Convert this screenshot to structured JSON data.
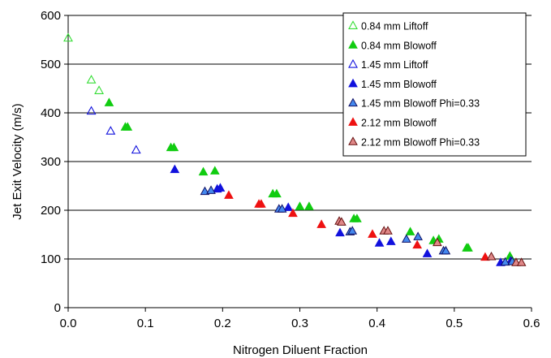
{
  "chart_data": {
    "type": "scatter",
    "title": "",
    "xlabel": "Nitrogen Diluent Fraction",
    "ylabel": "Jet Exit Velocity (m/s)",
    "xlim": [
      0,
      0.6
    ],
    "ylim": [
      0,
      600
    ],
    "xticks": [
      "0.0",
      "0.1",
      "0.2",
      "0.3",
      "0.4",
      "0.5",
      "0.6"
    ],
    "yticks": [
      "0",
      "100",
      "200",
      "300",
      "400",
      "500",
      "600"
    ],
    "grid": "horizontal",
    "legend_position": "top-right",
    "series": [
      {
        "name": "0.84 mm Liftoff",
        "marker": "open-triangle",
        "color": "#33dd33",
        "fill": "none",
        "points": [
          [
            0.0,
            553
          ],
          [
            0.03,
            467
          ],
          [
            0.04,
            445
          ]
        ]
      },
      {
        "name": "0.84 mm Blowoff",
        "marker": "filled-triangle",
        "color": "#11cc11",
        "fill": "#11cc11",
        "points": [
          [
            0.053,
            420
          ],
          [
            0.074,
            370
          ],
          [
            0.077,
            370
          ],
          [
            0.133,
            328
          ],
          [
            0.137,
            328
          ],
          [
            0.175,
            278
          ],
          [
            0.19,
            280
          ],
          [
            0.265,
            233
          ],
          [
            0.27,
            233
          ],
          [
            0.3,
            207
          ],
          [
            0.312,
            207
          ],
          [
            0.37,
            182
          ],
          [
            0.374,
            182
          ],
          [
            0.443,
            155
          ],
          [
            0.473,
            137
          ],
          [
            0.48,
            140
          ],
          [
            0.516,
            122
          ],
          [
            0.518,
            122
          ],
          [
            0.572,
            105
          ]
        ]
      },
      {
        "name": "1.45 mm Liftoff",
        "marker": "open-triangle",
        "color": "#1111dd",
        "fill": "none",
        "points": [
          [
            0.03,
            403
          ],
          [
            0.055,
            362
          ],
          [
            0.088,
            323
          ]
        ]
      },
      {
        "name": "1.45 mm Blowoff",
        "marker": "filled-triangle",
        "color": "#1111dd",
        "fill": "#1111dd",
        "points": [
          [
            0.138,
            283
          ],
          [
            0.193,
            243
          ],
          [
            0.197,
            245
          ],
          [
            0.285,
            205
          ],
          [
            0.352,
            153
          ],
          [
            0.403,
            132
          ],
          [
            0.418,
            135
          ],
          [
            0.465,
            110
          ],
          [
            0.56,
            92
          ],
          [
            0.573,
            95
          ]
        ]
      },
      {
        "name": "1.45 mm Blowoff Phi=0.33",
        "marker": "triangle",
        "color": "#111166",
        "fill": "#4488ee",
        "points": [
          [
            0.177,
            238
          ],
          [
            0.185,
            240
          ],
          [
            0.273,
            202
          ],
          [
            0.277,
            202
          ],
          [
            0.365,
            155
          ],
          [
            0.368,
            157
          ],
          [
            0.438,
            140
          ],
          [
            0.453,
            145
          ],
          [
            0.486,
            116
          ],
          [
            0.489,
            116
          ],
          [
            0.566,
            93
          ],
          [
            0.575,
            94
          ]
        ]
      },
      {
        "name": "2.12 mm Blowoff",
        "marker": "filled-triangle",
        "color": "#ee1111",
        "fill": "#ee1111",
        "points": [
          [
            0.208,
            230
          ],
          [
            0.247,
            212
          ],
          [
            0.25,
            212
          ],
          [
            0.291,
            193
          ],
          [
            0.328,
            170
          ],
          [
            0.394,
            150
          ],
          [
            0.452,
            128
          ],
          [
            0.54,
            103
          ]
        ]
      },
      {
        "name": "2.12 mm Blowoff Phi=0.33",
        "marker": "triangle",
        "color": "#661111",
        "fill": "#e08888",
        "points": [
          [
            0.351,
            177
          ],
          [
            0.354,
            175
          ],
          [
            0.409,
            157
          ],
          [
            0.414,
            157
          ],
          [
            0.478,
            133
          ],
          [
            0.548,
            104
          ],
          [
            0.58,
            92
          ],
          [
            0.587,
            92
          ]
        ]
      }
    ]
  }
}
